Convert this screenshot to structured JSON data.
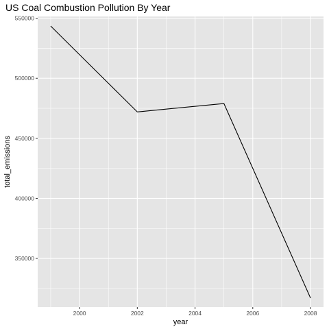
{
  "chart_data": {
    "type": "line",
    "title": "US Coal Combustion Pollution By Year",
    "xlabel": "year",
    "ylabel": "total_emissions",
    "x": [
      1999,
      2002,
      2005,
      2008
    ],
    "series": [
      {
        "values": [
          543500,
          472000,
          479000,
          317000
        ]
      }
    ],
    "xlim": [
      1998.55,
      2008.45
    ],
    "ylim": [
      309500,
      551500
    ],
    "x_ticks": [
      2000,
      2002,
      2004,
      2006,
      2008
    ],
    "y_ticks": [
      350000,
      400000,
      450000,
      500000,
      550000
    ],
    "x_tick_labels": [
      "2000",
      "2002",
      "2004",
      "2006",
      "2008"
    ],
    "y_tick_labels": [
      "350000",
      "400000",
      "450000",
      "500000",
      "550000"
    ],
    "grid": true,
    "colors": {
      "panel_background": "#e5e5e5",
      "grid": "#ffffff",
      "line": "#000000",
      "tick_text": "#4d4d4d",
      "tick_mark": "#333333"
    }
  }
}
